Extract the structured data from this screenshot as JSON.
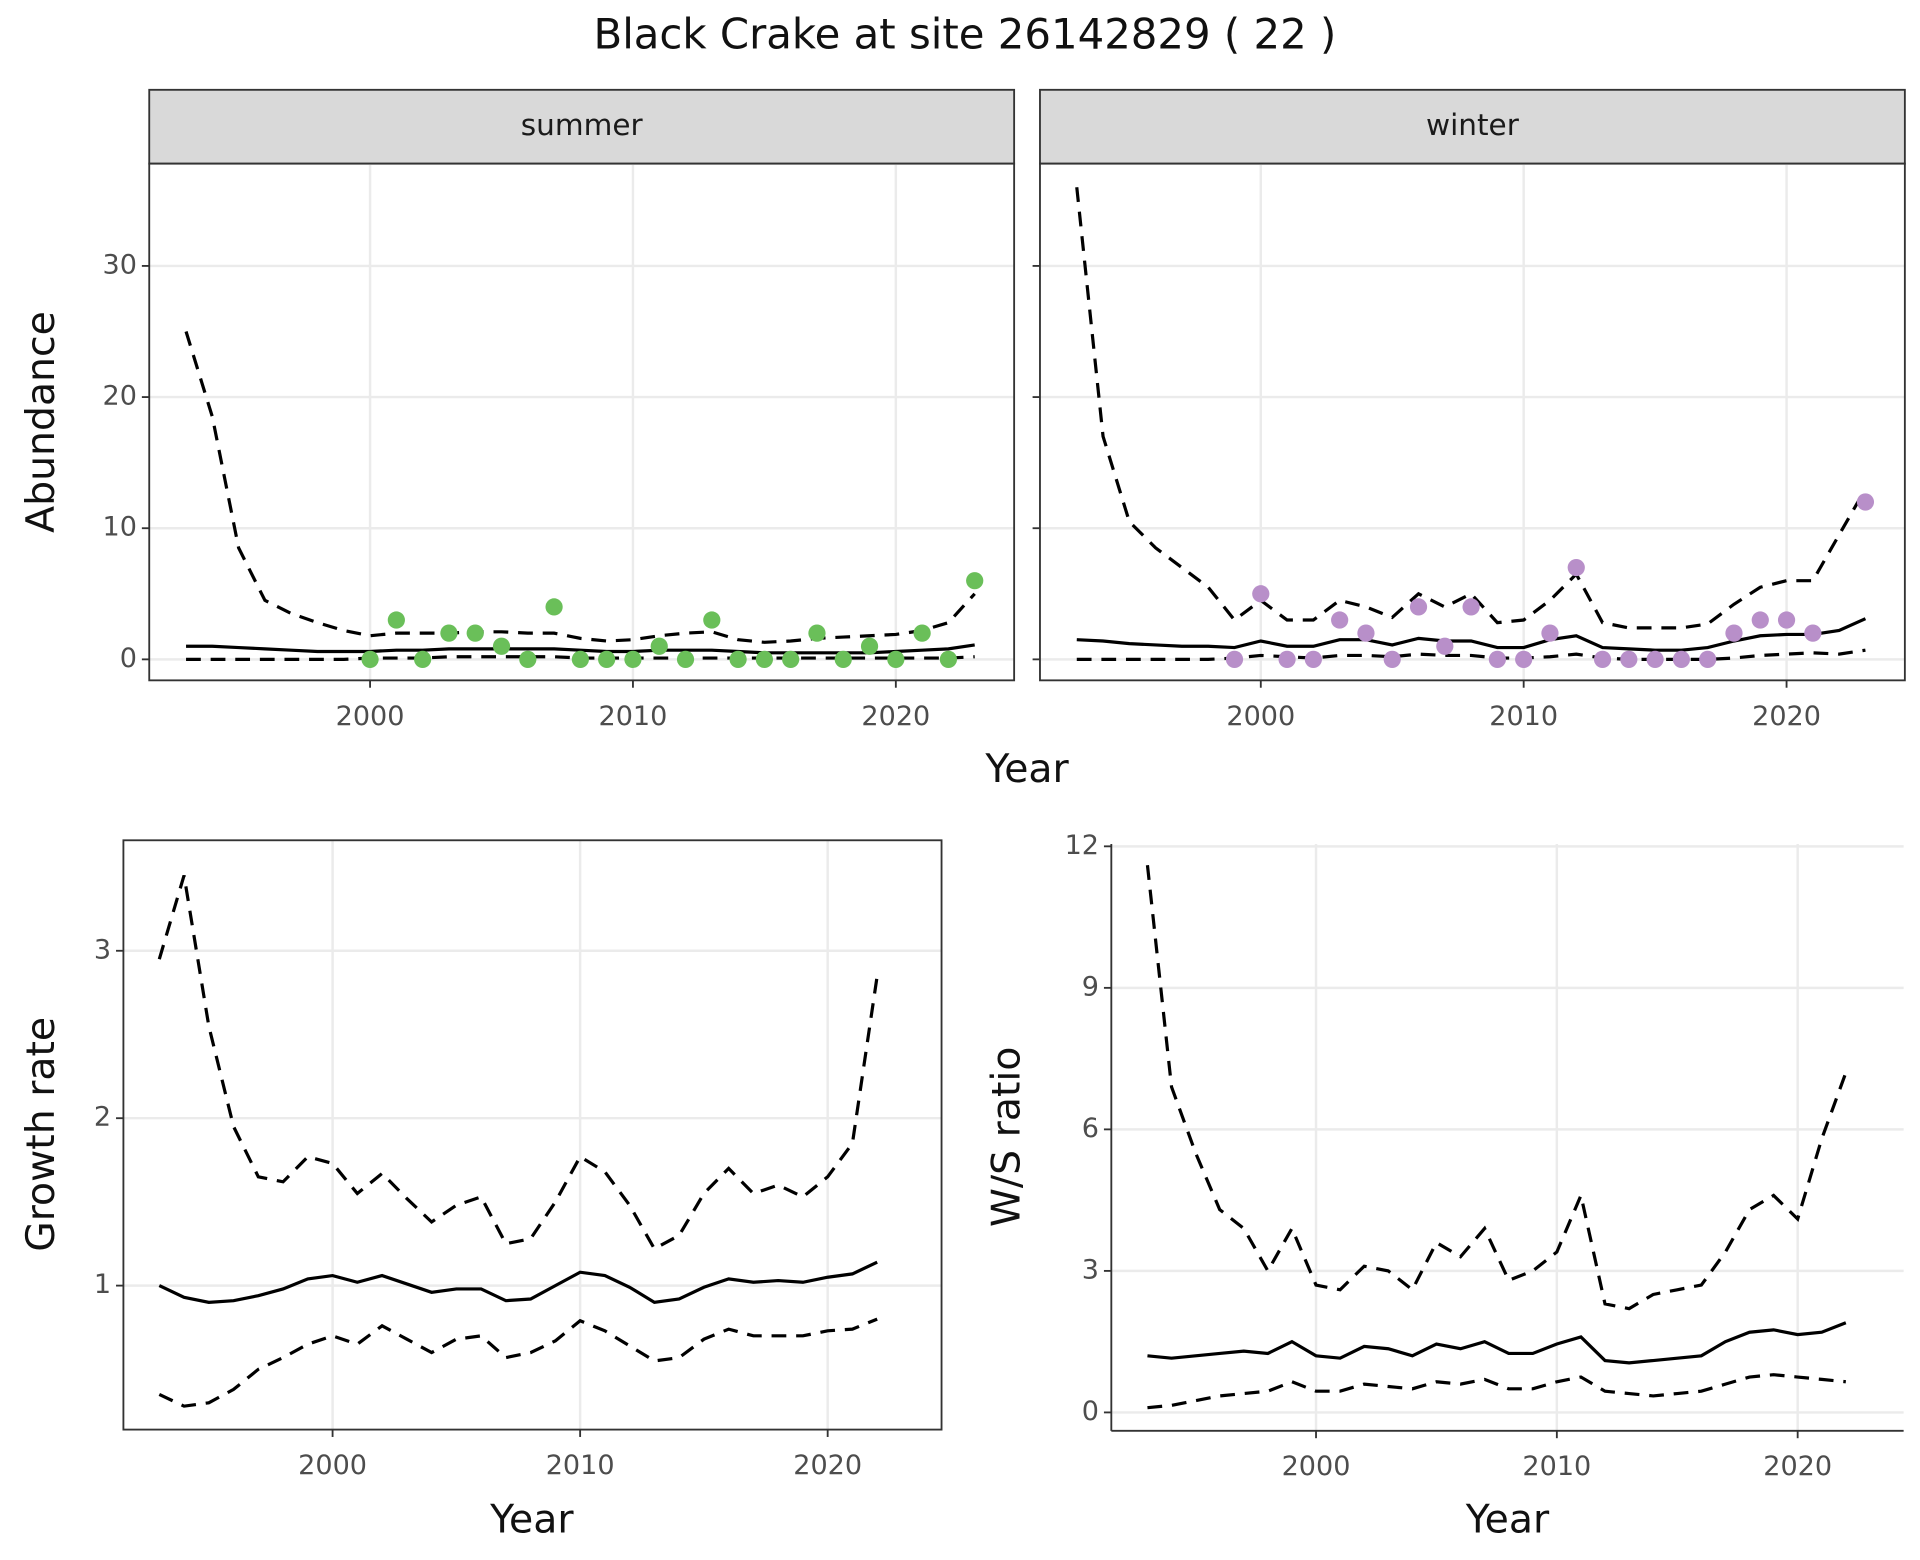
{
  "title": "Black Crake at site 26142829 ( 22 )",
  "chart_data": [
    {
      "type": "line",
      "facet": "summer",
      "x_label": "Year",
      "y_label": "Abundance",
      "frame": true,
      "grid": true,
      "x": [
        1993,
        1994,
        1995,
        1996,
        1997,
        1998,
        1999,
        2000,
        2001,
        2002,
        2003,
        2004,
        2005,
        2006,
        2007,
        2008,
        2009,
        2010,
        2011,
        2012,
        2013,
        2014,
        2015,
        2016,
        2017,
        2018,
        2019,
        2020,
        2021,
        2022,
        2023
      ],
      "xlim": [
        1991.6,
        2024.5
      ],
      "ylim": [
        -1.6,
        37.8
      ],
      "xticks": [
        2000,
        2010,
        2020
      ],
      "yticks": [
        0,
        10,
        20,
        30
      ],
      "series": [
        {
          "color": "#000000",
          "dash": "dashed",
          "values": [
            25,
            18.5,
            8.5,
            4.5,
            3.5,
            2.8,
            2.2,
            1.8,
            2.0,
            2.0,
            2.0,
            2.1,
            2.1,
            2.0,
            2.0,
            1.6,
            1.4,
            1.5,
            1.8,
            2.0,
            2.1,
            1.5,
            1.3,
            1.4,
            1.6,
            1.7,
            1.8,
            1.9,
            2.2,
            2.8,
            5.0
          ]
        },
        {
          "color": "#000000",
          "dash": "solid",
          "values": [
            1.0,
            1.0,
            0.9,
            0.8,
            0.7,
            0.6,
            0.6,
            0.6,
            0.7,
            0.7,
            0.8,
            0.8,
            0.8,
            0.8,
            0.8,
            0.7,
            0.6,
            0.6,
            0.7,
            0.7,
            0.7,
            0.6,
            0.5,
            0.5,
            0.5,
            0.5,
            0.5,
            0.6,
            0.7,
            0.8,
            1.1
          ]
        },
        {
          "color": "#000000",
          "dash": "dashed",
          "values": [
            0,
            0,
            0,
            0,
            0,
            0,
            0,
            0.1,
            0.1,
            0.1,
            0.2,
            0.2,
            0.2,
            0.2,
            0.2,
            0.1,
            0.1,
            0.1,
            0.1,
            0.1,
            0.1,
            0.1,
            0.1,
            0.1,
            0.1,
            0.1,
            0.1,
            0.1,
            0.1,
            0.1,
            0.2
          ]
        }
      ],
      "points": {
        "color": "#6abf59",
        "x": [
          2000,
          2001,
          2002,
          2003,
          2004,
          2005,
          2006,
          2007,
          2008,
          2009,
          2010,
          2011,
          2012,
          2013,
          2014,
          2015,
          2016,
          2017,
          2018,
          2019,
          2020,
          2021,
          2022,
          2023
        ],
        "values": [
          0,
          3,
          0,
          2,
          2,
          1,
          0,
          4,
          0,
          0,
          0,
          1,
          0,
          3,
          0,
          0,
          0,
          2,
          0,
          1,
          0,
          2,
          0,
          6
        ]
      }
    },
    {
      "type": "line",
      "facet": "winter",
      "frame": true,
      "grid": true,
      "shared_y": true,
      "x": [
        1993,
        1994,
        1995,
        1996,
        1997,
        1998,
        1999,
        2000,
        2001,
        2002,
        2003,
        2004,
        2005,
        2006,
        2007,
        2008,
        2009,
        2010,
        2011,
        2012,
        2013,
        2014,
        2015,
        2016,
        2017,
        2018,
        2019,
        2020,
        2021,
        2022,
        2023
      ],
      "xlim": [
        1991.6,
        2024.5
      ],
      "xticks": [
        2000,
        2010,
        2020
      ],
      "series": [
        {
          "color": "#000000",
          "dash": "dashed",
          "values": [
            36,
            17,
            10.5,
            8.5,
            7,
            5.5,
            3,
            4.5,
            3,
            3,
            4.5,
            4,
            3.2,
            5,
            4,
            5,
            2.8,
            3,
            4.5,
            6.5,
            2.8,
            2.4,
            2.4,
            2.4,
            2.7,
            4.2,
            5.5,
            6,
            6,
            9.5,
            13
          ]
        },
        {
          "color": "#000000",
          "dash": "solid",
          "values": [
            1.5,
            1.4,
            1.2,
            1.1,
            1.0,
            1.0,
            0.9,
            1.4,
            1.0,
            1.0,
            1.5,
            1.5,
            1.1,
            1.6,
            1.4,
            1.4,
            0.9,
            0.9,
            1.5,
            1.8,
            0.9,
            0.8,
            0.7,
            0.7,
            0.9,
            1.4,
            1.8,
            1.9,
            1.9,
            2.2,
            3.1
          ]
        },
        {
          "color": "#000000",
          "dash": "dashed",
          "values": [
            0,
            0,
            0,
            0,
            0,
            0,
            0.1,
            0.3,
            0.2,
            0.1,
            0.3,
            0.3,
            0.2,
            0.4,
            0.3,
            0.3,
            0.1,
            0.1,
            0.2,
            0.4,
            0.1,
            0,
            0,
            0,
            0,
            0.1,
            0.3,
            0.4,
            0.5,
            0.4,
            0.7
          ]
        }
      ],
      "points": {
        "color": "#b88fc9",
        "x": [
          1999,
          2000,
          2001,
          2002,
          2003,
          2004,
          2005,
          2006,
          2007,
          2008,
          2009,
          2010,
          2011,
          2012,
          2013,
          2014,
          2015,
          2016,
          2017,
          2018,
          2019,
          2020,
          2021,
          2023
        ],
        "values": [
          0,
          5,
          0,
          0,
          3,
          2,
          0,
          4,
          1,
          4,
          0,
          0,
          2,
          7,
          0,
          0,
          0,
          0,
          0,
          2,
          3,
          3,
          2,
          12
        ]
      }
    },
    {
      "type": "line",
      "x_label": "Year",
      "y_label": "Growth rate",
      "frame": true,
      "grid": true,
      "x": [
        1993,
        1994,
        1995,
        1996,
        1997,
        1998,
        1999,
        2000,
        2001,
        2002,
        2003,
        2004,
        2005,
        2006,
        2007,
        2008,
        2009,
        2010,
        2011,
        2012,
        2013,
        2014,
        2015,
        2016,
        2017,
        2018,
        2019,
        2020,
        2021,
        2022
      ],
      "xlim": [
        1991.55,
        2024.6
      ],
      "ylim": [
        0.14,
        3.66
      ],
      "xticks": [
        2000,
        2010,
        2020
      ],
      "yticks": [
        1,
        2,
        3
      ],
      "series": [
        {
          "color": "#000000",
          "dash": "dashed",
          "values": [
            2.95,
            3.45,
            2.55,
            1.95,
            1.65,
            1.62,
            1.77,
            1.73,
            1.55,
            1.67,
            1.52,
            1.38,
            1.48,
            1.53,
            1.25,
            1.28,
            1.5,
            1.77,
            1.68,
            1.48,
            1.22,
            1.3,
            1.55,
            1.7,
            1.55,
            1.6,
            1.53,
            1.65,
            1.85,
            2.85
          ]
        },
        {
          "color": "#000000",
          "dash": "solid",
          "values": [
            1.0,
            0.93,
            0.9,
            0.91,
            0.94,
            0.98,
            1.04,
            1.06,
            1.02,
            1.06,
            1.01,
            0.96,
            0.98,
            0.98,
            0.91,
            0.92,
            1.0,
            1.08,
            1.06,
            0.99,
            0.9,
            0.92,
            0.99,
            1.04,
            1.02,
            1.03,
            1.02,
            1.05,
            1.07,
            1.14
          ]
        },
        {
          "color": "#000000",
          "dash": "dashed",
          "values": [
            0.35,
            0.28,
            0.3,
            0.38,
            0.5,
            0.57,
            0.65,
            0.7,
            0.65,
            0.76,
            0.68,
            0.6,
            0.68,
            0.7,
            0.57,
            0.6,
            0.67,
            0.79,
            0.73,
            0.64,
            0.55,
            0.57,
            0.68,
            0.74,
            0.7,
            0.7,
            0.7,
            0.73,
            0.74,
            0.8
          ]
        }
      ]
    },
    {
      "type": "line",
      "x_label": "Year",
      "y_label": "W/S ratio",
      "frame": false,
      "grid": true,
      "x": [
        1993,
        1994,
        1995,
        1996,
        1997,
        1998,
        1999,
        2000,
        2001,
        2002,
        2003,
        2004,
        2005,
        2006,
        2007,
        2008,
        2009,
        2010,
        2011,
        2012,
        2013,
        2014,
        2015,
        2016,
        2017,
        2018,
        2019,
        2020,
        2021,
        2022
      ],
      "xlim": [
        1991.5,
        2024.4
      ],
      "ylim": [
        -0.39,
        12.05
      ],
      "xticks": [
        2000,
        2010,
        2020
      ],
      "yticks": [
        0,
        3,
        6,
        9,
        12
      ],
      "series": [
        {
          "color": "#000000",
          "dash": "dashed",
          "values": [
            11.6,
            6.9,
            5.5,
            4.3,
            3.9,
            3.0,
            3.9,
            2.7,
            2.6,
            3.1,
            3.0,
            2.6,
            3.6,
            3.3,
            3.9,
            2.8,
            3.0,
            3.4,
            4.6,
            2.3,
            2.2,
            2.5,
            2.6,
            2.7,
            3.4,
            4.3,
            4.6,
            4.1,
            5.8,
            7.2
          ]
        },
        {
          "color": "#000000",
          "dash": "solid",
          "values": [
            1.2,
            1.15,
            1.2,
            1.25,
            1.3,
            1.25,
            1.5,
            1.2,
            1.15,
            1.4,
            1.35,
            1.2,
            1.45,
            1.35,
            1.5,
            1.25,
            1.25,
            1.45,
            1.6,
            1.1,
            1.05,
            1.1,
            1.15,
            1.2,
            1.5,
            1.7,
            1.75,
            1.65,
            1.7,
            1.9
          ]
        },
        {
          "color": "#000000",
          "dash": "dashed",
          "values": [
            0.1,
            0.15,
            0.25,
            0.35,
            0.4,
            0.45,
            0.65,
            0.45,
            0.45,
            0.6,
            0.55,
            0.5,
            0.65,
            0.6,
            0.7,
            0.5,
            0.5,
            0.65,
            0.75,
            0.45,
            0.4,
            0.35,
            0.4,
            0.45,
            0.6,
            0.75,
            0.8,
            0.75,
            0.7,
            0.65
          ]
        }
      ]
    }
  ]
}
